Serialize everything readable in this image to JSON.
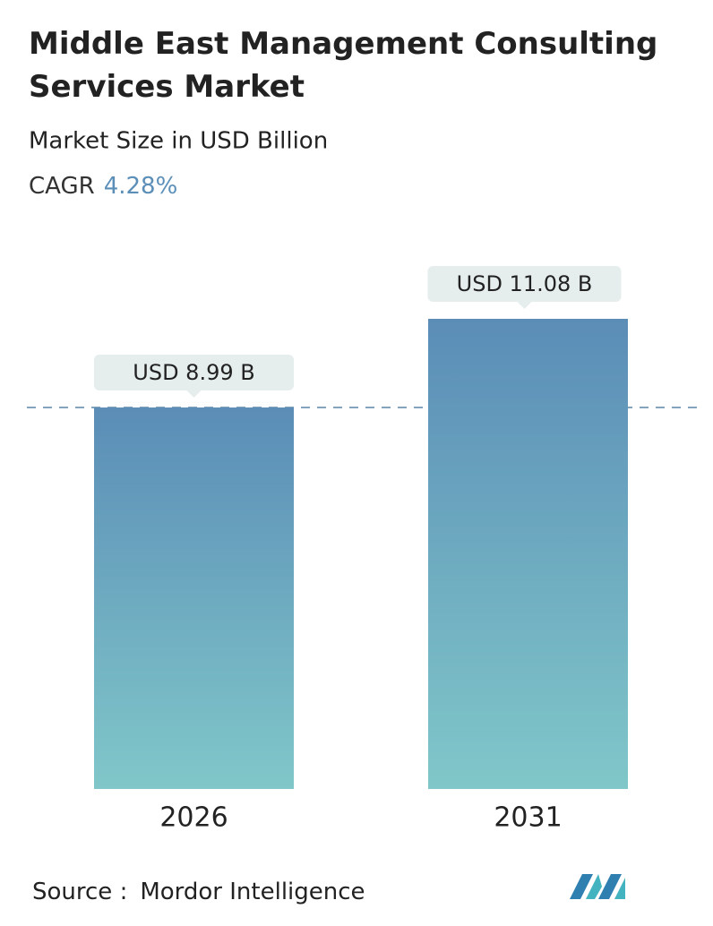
{
  "chart_data": {
    "type": "bar",
    "title": "Middle East Management Consulting Services Market",
    "subtitle": "Market Size in USD Billion",
    "cagr_label": "CAGR",
    "cagr": "4.28%",
    "categories": [
      "2026",
      "2031"
    ],
    "values": [
      8.99,
      11.08
    ],
    "value_labels": [
      "USD 8.99 B",
      "USD 11.08 B"
    ],
    "gradient": [
      "#5b8db7",
      "#80c7c9"
    ],
    "source_label": "Source :",
    "source": "Mordor Intelligence"
  }
}
